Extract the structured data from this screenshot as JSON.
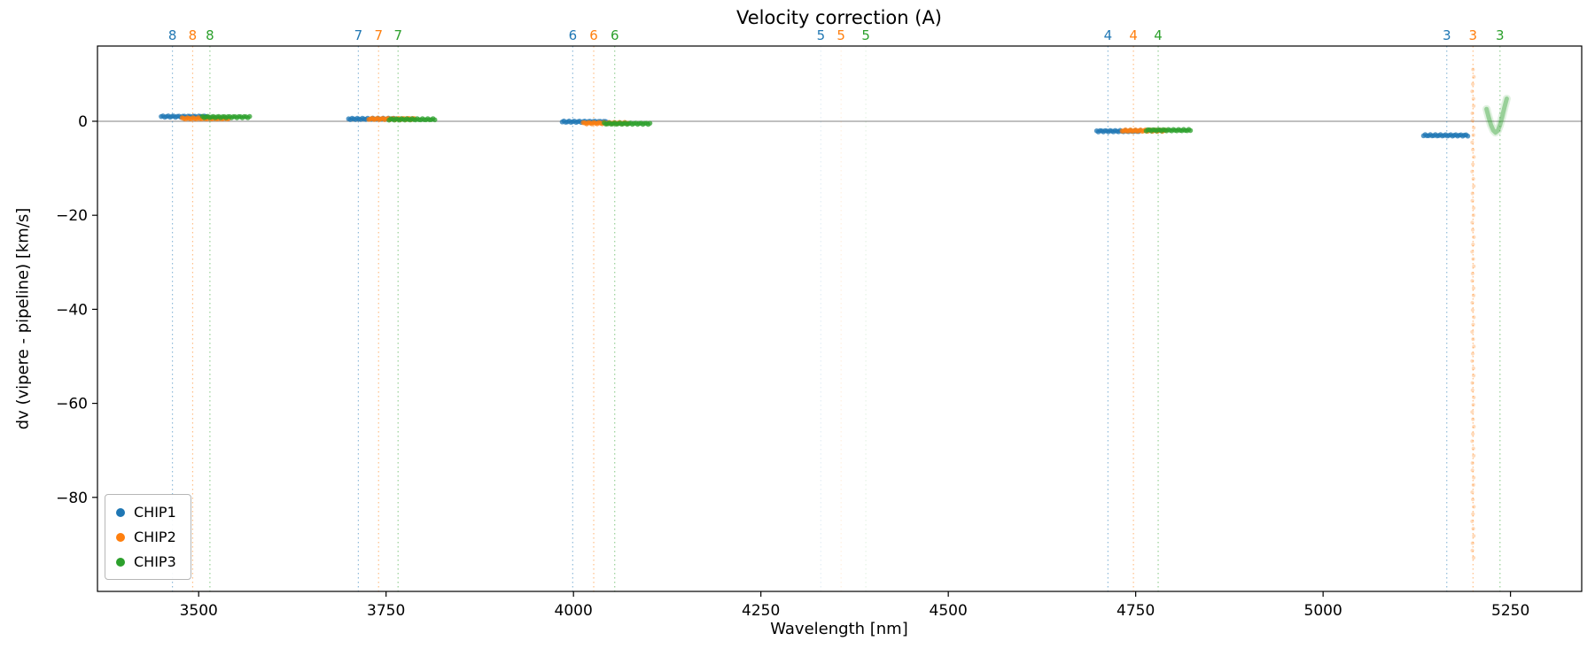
{
  "figure": {
    "title": "Velocity correction (A)"
  },
  "colors": {
    "CHIP1": "#1f77b4",
    "CHIP2": "#ff7f0e",
    "CHIP3": "#2ca02c",
    "zero_line": "#808080",
    "spine": "#000000"
  },
  "chart_data": {
    "type": "scatter",
    "title": "Velocity correction (A)",
    "xlabel": "Wavelength [nm]",
    "ylabel": "dv (vipere - pipeline) [km/s]",
    "xlim": [
      3365,
      5345
    ],
    "ylim": [
      -100,
      16
    ],
    "xticks": [
      3500,
      3750,
      4000,
      4250,
      4500,
      4750,
      5000,
      5250
    ],
    "yticks": [
      0,
      -20,
      -40,
      -60,
      -80
    ],
    "grid": false,
    "legend": [
      "CHIP1",
      "CHIP2",
      "CHIP3"
    ],
    "legend_position": "lower left",
    "order_lines": [
      {
        "order": "8",
        "chip": "CHIP1",
        "x": 3465,
        "alpha": 0.5
      },
      {
        "order": "8",
        "chip": "CHIP2",
        "x": 3492,
        "alpha": 0.5
      },
      {
        "order": "8",
        "chip": "CHIP3",
        "x": 3515,
        "alpha": 0.5
      },
      {
        "order": "7",
        "chip": "CHIP1",
        "x": 3713,
        "alpha": 0.5
      },
      {
        "order": "7",
        "chip": "CHIP2",
        "x": 3740,
        "alpha": 0.5
      },
      {
        "order": "7",
        "chip": "CHIP3",
        "x": 3766,
        "alpha": 0.5
      },
      {
        "order": "6",
        "chip": "CHIP1",
        "x": 3999,
        "alpha": 0.5
      },
      {
        "order": "6",
        "chip": "CHIP2",
        "x": 4027,
        "alpha": 0.5
      },
      {
        "order": "6",
        "chip": "CHIP3",
        "x": 4055,
        "alpha": 0.5
      },
      {
        "order": "5",
        "chip": "CHIP1",
        "x": 4330,
        "alpha": 0.12
      },
      {
        "order": "5",
        "chip": "CHIP2",
        "x": 4357,
        "alpha": 0.12
      },
      {
        "order": "5",
        "chip": "CHIP3",
        "x": 4390,
        "alpha": 0.12
      },
      {
        "order": "4",
        "chip": "CHIP1",
        "x": 4713,
        "alpha": 0.5
      },
      {
        "order": "4",
        "chip": "CHIP2",
        "x": 4747,
        "alpha": 0.5
      },
      {
        "order": "4",
        "chip": "CHIP3",
        "x": 4780,
        "alpha": 0.5
      },
      {
        "order": "3",
        "chip": "CHIP1",
        "x": 5165,
        "alpha": 0.5
      },
      {
        "order": "3",
        "chip": "CHIP2",
        "x": 5200,
        "alpha": 0.5
      },
      {
        "order": "3",
        "chip": "CHIP3",
        "x": 5236,
        "alpha": 0.5
      }
    ],
    "segments": [
      {
        "chip": "CHIP1",
        "order": "8",
        "x0": 3450,
        "x1": 3512,
        "y": 1.0
      },
      {
        "chip": "CHIP2",
        "order": "8",
        "x0": 3478,
        "x1": 3540,
        "y": 0.6
      },
      {
        "chip": "CHIP3",
        "order": "8",
        "x0": 3505,
        "x1": 3568,
        "y": 0.9
      },
      {
        "chip": "CHIP1",
        "order": "7",
        "x0": 3700,
        "x1": 3760,
        "y": 0.5
      },
      {
        "chip": "CHIP2",
        "order": "7",
        "x0": 3727,
        "x1": 3788,
        "y": 0.5
      },
      {
        "chip": "CHIP3",
        "order": "7",
        "x0": 3754,
        "x1": 3815,
        "y": 0.4
      },
      {
        "chip": "CHIP1",
        "order": "6",
        "x0": 3985,
        "x1": 4045,
        "y": -0.1
      },
      {
        "chip": "CHIP2",
        "order": "6",
        "x0": 4013,
        "x1": 4073,
        "y": -0.4
      },
      {
        "chip": "CHIP3",
        "order": "6",
        "x0": 4041,
        "x1": 4102,
        "y": -0.5
      },
      {
        "chip": "CHIP1",
        "order": "4",
        "x0": 4698,
        "x1": 4756,
        "y": -2.1
      },
      {
        "chip": "CHIP2",
        "order": "4",
        "x0": 4732,
        "x1": 4790,
        "y": -2.0
      },
      {
        "chip": "CHIP3",
        "order": "4",
        "x0": 4764,
        "x1": 4823,
        "y": -1.9
      },
      {
        "chip": "CHIP1",
        "order": "3",
        "x0": 5134,
        "x1": 5193,
        "y": -3.0
      }
    ],
    "anomalies": {
      "vline_scatter": {
        "chip": "CHIP2",
        "order": "3",
        "x": 5200,
        "ymin": -93,
        "ymax": 11
      },
      "curve": {
        "chip": "CHIP3",
        "order": "3",
        "points": [
          [
            5218,
            2.6
          ],
          [
            5221,
            0.8
          ],
          [
            5224,
            -0.8
          ],
          [
            5227,
            -1.9
          ],
          [
            5230,
            -2.4
          ],
          [
            5233,
            -2.0
          ],
          [
            5236,
            -0.8
          ],
          [
            5239,
            1.0
          ],
          [
            5242,
            3.0
          ],
          [
            5245,
            4.8
          ]
        ]
      }
    }
  }
}
